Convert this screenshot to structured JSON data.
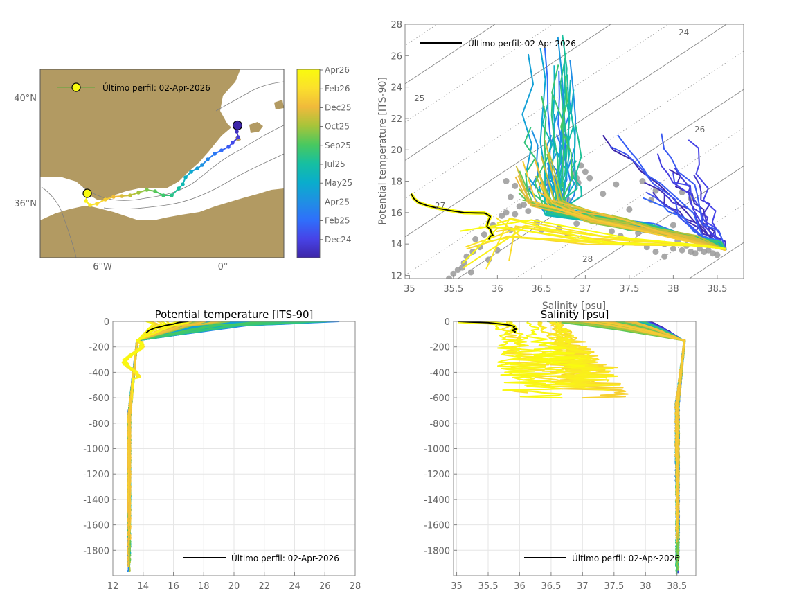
{
  "map": {
    "lat_ticks": [
      "40°N",
      "36°N"
    ],
    "lon_ticks": [
      "6°W",
      "0°"
    ],
    "legend": "Último perfil: 02-Apr-2026",
    "colorbar_ticks": [
      "Apr26",
      "Feb26",
      "Dec25",
      "Oct25",
      "Sep25",
      "Jul25",
      "May25",
      "Apr25",
      "Feb25",
      "Dec24"
    ],
    "land_color": "#b29a62",
    "sea_color": "#ffffff"
  },
  "colors": {
    "colormap": [
      "#3e26a8",
      "#4743e7",
      "#2f6ffb",
      "#1f90e3",
      "#0aadcc",
      "#16bfa1",
      "#49c85f",
      "#a7c43a",
      "#f0ba3b",
      "#fbe02c",
      "#f9fb0e"
    ],
    "last_profile": "#000000",
    "historical": "#999999"
  },
  "chart_data": [
    {
      "type": "scatter",
      "name": "ts_diagram",
      "xlabel": "Salinity [psu]",
      "ylabel": "Potential temperature [ITS-90]",
      "xlim": [
        34.95,
        38.8
      ],
      "ylim": [
        11.8,
        28
      ],
      "xticks": [
        35,
        35.5,
        36,
        36.5,
        37,
        37.5,
        38,
        38.5
      ],
      "yticks": [
        12,
        14,
        16,
        18,
        20,
        22,
        24,
        26,
        28
      ],
      "density_labels": [
        "24",
        "25",
        "26",
        "27",
        "28"
      ],
      "legend": "Último perfil: 02-Apr-2026",
      "legend_position": "top-left",
      "last_profile": {
        "S": [
          35.02,
          35.05,
          35.1,
          35.2,
          35.35,
          35.5,
          35.62,
          35.75,
          35.85,
          35.88,
          35.92,
          35.9,
          35.88,
          35.92,
          35.93,
          35.95,
          35.92,
          35.9
        ],
        "T": [
          17.2,
          16.9,
          16.65,
          16.45,
          16.25,
          16.1,
          16.0,
          15.98,
          15.97,
          15.9,
          15.75,
          15.5,
          15.1,
          14.95,
          14.7,
          14.55,
          14.5,
          14.3
        ]
      },
      "historical_points": {
        "S": [
          35.45,
          35.5,
          35.55,
          35.6,
          35.62,
          35.65,
          35.7,
          35.72,
          35.75,
          35.8,
          35.85,
          35.9,
          35.95,
          36.0,
          36.05,
          36.1,
          36.15,
          36.2,
          36.25,
          36.3,
          36.35,
          36.45,
          36.5,
          36.55,
          36.6,
          36.65,
          36.7,
          36.8,
          36.9,
          37.0,
          37.1,
          37.2,
          37.3,
          37.4,
          37.5,
          37.6,
          37.7,
          37.8,
          37.9,
          38.0,
          38.05,
          38.1,
          38.15,
          38.2,
          38.25,
          38.3,
          38.35,
          38.4,
          38.45,
          38.5,
          37.9,
          38.0,
          37.75,
          37.2,
          37.0,
          36.95,
          36.9,
          36.88,
          36.92,
          36.6,
          36.7,
          36.15,
          36.2,
          36.35,
          37.65,
          37.8,
          38.1,
          38.2,
          37.5,
          38.3,
          37.35,
          37.05,
          36.1,
          36.8
        ],
        "T": [
          11.8,
          12.1,
          12.35,
          12.5,
          12.8,
          13.2,
          12.2,
          13.5,
          14.3,
          13.8,
          14.6,
          13.0,
          15.2,
          13.6,
          15.8,
          16.0,
          17.0,
          17.7,
          16.4,
          16.5,
          17.5,
          15.4,
          14.9,
          17.9,
          18.3,
          16.7,
          15.0,
          14.6,
          15.3,
          16.0,
          15.5,
          15.6,
          14.8,
          14.5,
          15.0,
          14.7,
          13.8,
          13.5,
          13.2,
          13.7,
          14.2,
          13.6,
          13.9,
          13.5,
          13.4,
          13.7,
          13.5,
          13.6,
          13.4,
          13.3,
          14.0,
          15.2,
          16.8,
          17.2,
          18.6,
          19.0,
          18.2,
          18.5,
          17.9,
          18.8,
          16.3,
          14.9,
          15.9,
          16.1,
          18.0,
          17.4,
          17.3,
          16.9,
          16.2,
          15.1,
          17.8,
          18.2,
          18.0,
          16.8
        ]
      }
    },
    {
      "type": "line",
      "name": "temperature_profile",
      "title": "Potential temperature [ITS-90]",
      "xlim": [
        12,
        28
      ],
      "ylim": [
        -2000,
        0
      ],
      "xticks": [
        12,
        14,
        16,
        18,
        20,
        22,
        24,
        26,
        28
      ],
      "yticks": [
        0,
        -200,
        -400,
        -600,
        -800,
        -1000,
        -1200,
        -1400,
        -1600,
        -1800
      ],
      "legend": "Último perfil: 02-Apr-2026",
      "legend_position": "bottom-right",
      "last_profile": {
        "x": [
          17.0,
          16.6,
          16.3,
          16.0,
          15.5,
          15.2,
          14.8,
          14.6,
          14.4,
          14.3,
          14.2
        ],
        "depth": [
          0,
          -5,
          -10,
          -20,
          -30,
          -40,
          -50,
          -60,
          -70,
          -80,
          -90
        ]
      }
    },
    {
      "type": "line",
      "name": "salinity_profile",
      "title": "Salinity [psu]",
      "xlim": [
        34.95,
        38.8
      ],
      "ylim": [
        -2000,
        0
      ],
      "xticks": [
        35,
        35.5,
        36,
        36.5,
        37,
        37.5,
        38,
        38.5
      ],
      "yticks": [
        0,
        -200,
        -400,
        -600,
        -800,
        -1000,
        -1200,
        -1400,
        -1600,
        -1800
      ],
      "legend": "Último perfil: 02-Apr-2026",
      "legend_position": "bottom-right",
      "last_profile": {
        "x": [
          35.02,
          35.2,
          35.5,
          35.7,
          35.85,
          35.92,
          35.9,
          35.95,
          35.88,
          35.93,
          35.92
        ],
        "depth": [
          0,
          -5,
          -10,
          -20,
          -30,
          -40,
          -50,
          -60,
          -70,
          -80,
          -90
        ]
      }
    }
  ]
}
